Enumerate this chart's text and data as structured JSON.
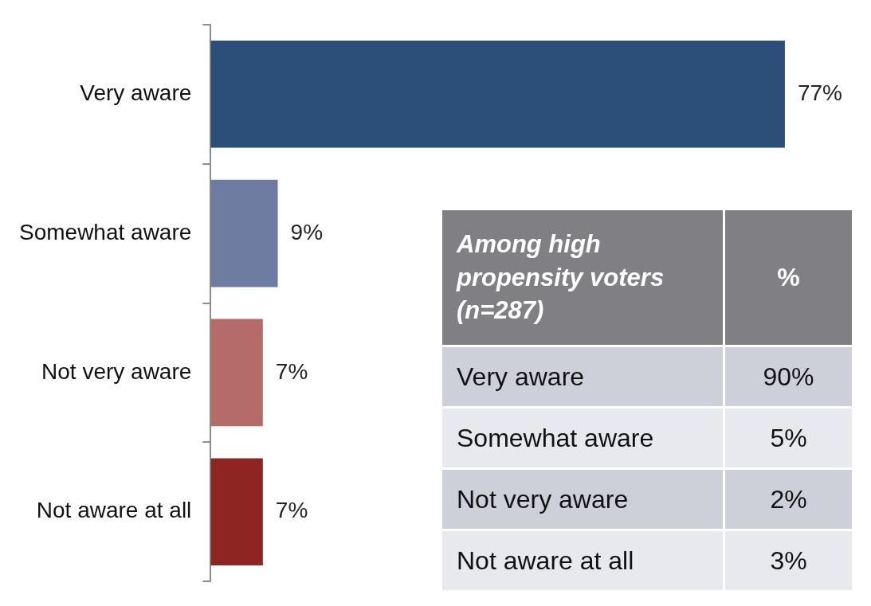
{
  "chart_data": [
    {
      "type": "bar",
      "orientation": "horizontal",
      "categories": [
        "Very aware",
        "Somewhat aware",
        "Not very aware",
        "Not aware at all"
      ],
      "values": [
        77,
        9,
        7,
        7
      ],
      "colors": [
        "#2b4f78",
        "#6c7b9f",
        "#b56b67",
        "#8e2523"
      ],
      "value_labels": [
        "77%",
        "9%",
        "7%",
        "7%"
      ],
      "grid": false,
      "legend": false,
      "tick_labels": "y"
    },
    {
      "type": "other",
      "title": "Among high propensity voters (n=287)",
      "ylabel": "%",
      "categories": [
        "Very aware",
        "Somewhat aware",
        "Not very aware",
        "Not aware at all"
      ],
      "values": [
        90,
        5,
        2,
        3
      ],
      "value_labels": [
        "90%",
        "5%",
        "2%",
        "3%"
      ]
    }
  ]
}
